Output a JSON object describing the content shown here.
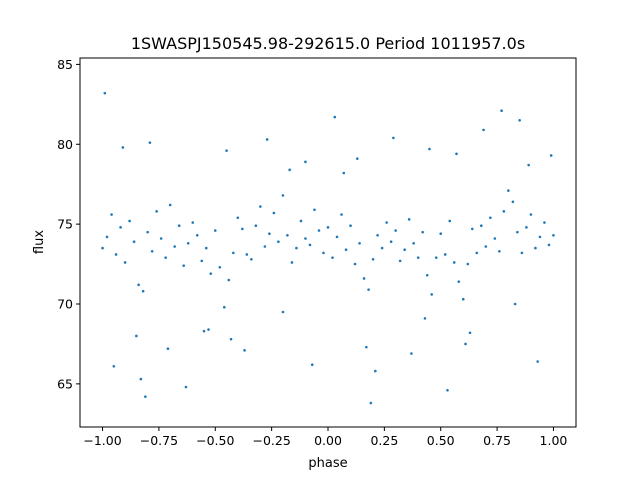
{
  "chart_data": {
    "type": "scatter",
    "title": "1SWASPJ150545.98-292615.0 Period 1011957.0s",
    "xlabel": "phase",
    "ylabel": "flux",
    "xlim": [
      -1.1,
      1.1
    ],
    "ylim": [
      62.3,
      85.4
    ],
    "xticks": [
      {
        "value": -1.0,
        "label": "−1.00"
      },
      {
        "value": -0.75,
        "label": "−0.75"
      },
      {
        "value": -0.5,
        "label": "−0.50"
      },
      {
        "value": -0.25,
        "label": "−0.25"
      },
      {
        "value": 0.0,
        "label": "0.00"
      },
      {
        "value": 0.25,
        "label": "0.25"
      },
      {
        "value": 0.5,
        "label": "0.50"
      },
      {
        "value": 0.75,
        "label": "0.75"
      },
      {
        "value": 1.0,
        "label": "1.00"
      }
    ],
    "yticks": [
      {
        "value": 65,
        "label": "65"
      },
      {
        "value": 70,
        "label": "70"
      },
      {
        "value": 75,
        "label": "75"
      },
      {
        "value": 80,
        "label": "80"
      },
      {
        "value": 85,
        "label": "85"
      }
    ],
    "grid": false,
    "color": "#1f77b4",
    "series": [
      {
        "x": [
          -1.0,
          -0.98,
          -0.96,
          -0.94,
          -0.92,
          -0.9,
          -0.88,
          -0.86,
          -0.84,
          -0.82,
          -0.8,
          -0.78,
          -0.76,
          -0.74,
          -0.72,
          -0.7,
          -0.68,
          -0.66,
          -0.64,
          -0.62,
          -0.6,
          -0.58,
          -0.56,
          -0.54,
          -0.52,
          -0.5,
          -0.48,
          -0.46,
          -0.44,
          -0.42,
          -0.4,
          -0.38,
          -0.36,
          -0.34,
          -0.32,
          -0.3,
          -0.28,
          -0.26,
          -0.24,
          -0.22,
          -0.2,
          -0.18,
          -0.16,
          -0.14,
          -0.12,
          -0.1,
          -0.08,
          -0.06,
          -0.04,
          -0.02,
          0.0,
          0.02,
          0.04,
          0.06,
          0.08,
          0.1,
          0.12,
          0.14,
          0.16,
          0.18,
          0.2,
          0.22,
          0.24,
          0.26,
          0.28,
          0.3,
          0.32,
          0.34,
          0.36,
          0.38,
          0.4,
          0.42,
          0.44,
          0.46,
          0.48,
          0.5,
          0.52,
          0.54,
          0.56,
          0.58,
          0.6,
          0.62,
          0.64,
          0.66,
          0.68,
          0.7,
          0.72,
          0.74,
          0.76,
          0.78,
          0.8,
          0.82,
          0.84,
          0.86,
          0.88,
          0.9,
          0.92,
          0.94,
          0.96,
          0.98,
          1.0,
          -0.99,
          -0.91,
          -0.83,
          -0.79,
          -0.71,
          -0.63,
          -0.53,
          -0.45,
          -0.37,
          -0.27,
          -0.17,
          -0.07,
          0.03,
          0.13,
          0.19,
          0.29,
          0.37,
          0.45,
          0.53,
          0.61,
          0.69,
          0.77,
          0.85,
          0.93,
          0.99,
          -0.95,
          -0.85,
          -0.81,
          -0.55,
          -0.43,
          -0.2,
          -0.1,
          0.07,
          0.17,
          0.21,
          0.43,
          0.57,
          0.63,
          0.83,
          0.89
        ],
        "y": [
          73.5,
          74.2,
          75.6,
          73.1,
          74.8,
          72.6,
          75.2,
          73.9,
          71.2,
          70.8,
          74.5,
          73.3,
          75.8,
          74.1,
          72.9,
          76.2,
          73.6,
          74.9,
          72.4,
          73.8,
          75.1,
          74.3,
          72.7,
          73.5,
          71.9,
          74.6,
          72.3,
          69.8,
          71.5,
          73.2,
          75.4,
          74.7,
          73.1,
          72.8,
          74.9,
          76.1,
          73.6,
          74.4,
          75.7,
          73.9,
          76.8,
          74.3,
          72.6,
          73.5,
          75.2,
          74.1,
          73.7,
          75.9,
          74.6,
          73.2,
          74.8,
          72.9,
          74.2,
          75.6,
          73.4,
          74.9,
          72.5,
          73.8,
          71.6,
          70.9,
          72.8,
          74.3,
          73.5,
          75.1,
          73.9,
          74.6,
          72.7,
          73.4,
          75.3,
          73.8,
          72.9,
          74.5,
          71.8,
          70.6,
          72.9,
          74.4,
          73.1,
          75.2,
          72.6,
          71.4,
          70.3,
          72.5,
          74.7,
          73.2,
          74.9,
          73.6,
          75.4,
          74.1,
          73.3,
          75.8,
          77.1,
          76.4,
          74.5,
          73.2,
          74.8,
          75.6,
          73.5,
          74.2,
          75.1,
          73.7,
          74.3,
          83.2,
          79.8,
          65.3,
          80.1,
          67.2,
          64.8,
          68.4,
          79.6,
          67.1,
          80.3,
          78.4,
          66.2,
          81.7,
          79.1,
          63.8,
          80.4,
          66.9,
          79.7,
          64.6,
          67.5,
          80.9,
          82.1,
          81.5,
          66.4,
          79.3,
          66.1,
          68.0,
          64.2,
          68.3,
          67.8,
          69.5,
          78.9,
          78.2,
          67.3,
          65.8,
          69.1,
          79.4,
          68.2,
          70.0,
          78.7
        ]
      }
    ]
  }
}
